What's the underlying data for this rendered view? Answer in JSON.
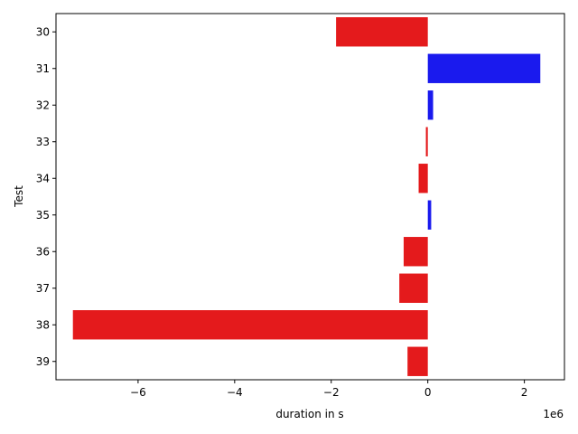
{
  "chart_data": {
    "type": "bar",
    "orientation": "horizontal",
    "categories": [
      "30",
      "31",
      "32",
      "33",
      "34",
      "35",
      "36",
      "37",
      "38",
      "39"
    ],
    "values": [
      -1900000,
      2330000,
      110000,
      -40000,
      -190000,
      70000,
      -500000,
      -590000,
      -7350000,
      -420000
    ],
    "bar_colors": [
      "#e41a1c",
      "#1a1aee",
      "#1a1aee",
      "#e41a1c",
      "#e41a1c",
      "#1a1aee",
      "#e41a1c",
      "#e41a1c",
      "#e41a1c",
      "#e41a1c"
    ],
    "xlabel": "duration in s",
    "ylabel": "Test",
    "x_ticks": [
      -6,
      -4,
      -2,
      0,
      2
    ],
    "x_tick_labels": [
      "−6",
      "−4",
      "−2",
      "0",
      "2"
    ],
    "x_multiplier_label": "1e6",
    "xlim": [
      -7700000,
      2830000
    ],
    "grid": false,
    "colors": {
      "negative": "#e41a1c",
      "positive": "#1a1aee"
    }
  }
}
